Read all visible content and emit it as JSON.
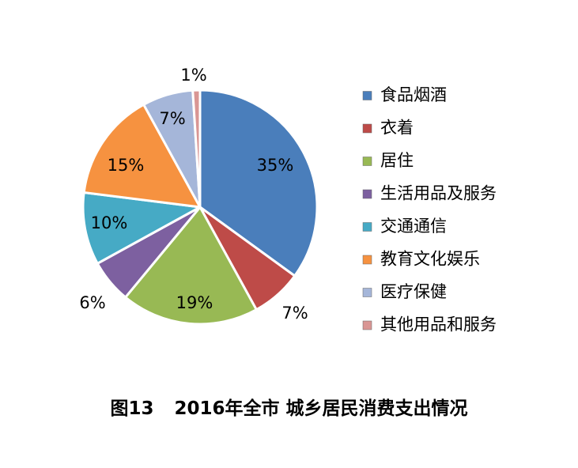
{
  "caption": {
    "figure_no": "图13",
    "title": "2016年全市 城乡居民消费支出情况"
  },
  "chart_data": {
    "type": "pie",
    "title": "2016年全市 城乡居民消费支出情况",
    "legend_position": "right",
    "slices": [
      {
        "name": "食品烟酒",
        "value": 35,
        "label": "35%",
        "color": "#4a7ebb"
      },
      {
        "name": "衣着",
        "value": 7,
        "label": "7%",
        "color": "#be4b48"
      },
      {
        "name": "居住",
        "value": 19,
        "label": "19%",
        "color": "#98b954"
      },
      {
        "name": "生活用品及服务",
        "value": 6,
        "label": "6%",
        "color": "#7d60a0"
      },
      {
        "name": "交通通信",
        "value": 10,
        "label": "10%",
        "color": "#46aac5"
      },
      {
        "name": "教育文化娱乐",
        "value": 15,
        "label": "15%",
        "color": "#f69240"
      },
      {
        "name": "医疗保健",
        "value": 7,
        "label": "7%",
        "color": "#a5b6d9"
      },
      {
        "name": "其他用品和服务",
        "value": 1,
        "label": "1%",
        "color": "#d99694"
      }
    ]
  }
}
